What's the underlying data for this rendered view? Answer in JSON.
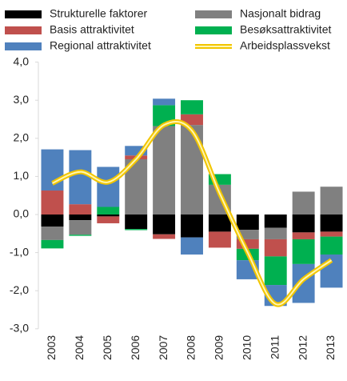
{
  "chart_data": {
    "type": "stacked-bar-line",
    "categories": [
      "2003",
      "2004",
      "2005",
      "2006",
      "2007",
      "2008",
      "2009",
      "2010",
      "2011",
      "2012",
      "2013"
    ],
    "series": [
      {
        "name": "Strukturelle faktorer",
        "color": "#000000",
        "values": [
          -0.32,
          -0.15,
          -0.05,
          -0.38,
          -0.52,
          -0.6,
          -0.45,
          -0.4,
          -0.35,
          -0.47,
          -0.45
        ]
      },
      {
        "name": "Nasjonalt bidrag",
        "color": "#808080",
        "values": [
          -0.35,
          -0.38,
          0,
          1.45,
          2.32,
          2.35,
          0.78,
          -0.25,
          -0.3,
          0.6,
          0.73
        ]
      },
      {
        "name": "Basis attraktivitet",
        "color": "#c0504d",
        "values": [
          0.63,
          0.27,
          -0.18,
          0.1,
          -0.12,
          0.28,
          -0.42,
          -0.25,
          -0.45,
          -0.18,
          -0.13
        ]
      },
      {
        "name": "Besøksattraktivitet",
        "color": "#00b050",
        "values": [
          -0.22,
          -0.03,
          0.2,
          -0.03,
          0.55,
          0.37,
          0.28,
          -0.3,
          -0.75,
          -0.65,
          -0.47
        ]
      },
      {
        "name": "Regional attraktivitet",
        "color": "#4f81bd",
        "values": [
          1.08,
          1.42,
          1.05,
          0.25,
          0.17,
          -0.45,
          0,
          -0.5,
          -0.55,
          -1.02,
          -0.87
        ]
      },
      {
        "name": "Arbeidsplassvekst",
        "color": "#f2c500",
        "type": "line",
        "values": [
          0.82,
          1.12,
          0.85,
          1.45,
          2.35,
          2.2,
          0.55,
          -1.0,
          -2.35,
          -1.7,
          -1.2
        ]
      }
    ],
    "ylim": [
      -3,
      4
    ],
    "yticks": [
      {
        "value": -3,
        "label": "-3,0"
      },
      {
        "value": -2,
        "label": "-2,0"
      },
      {
        "value": -1,
        "label": "-1,0"
      },
      {
        "value": 0,
        "label": "0,0"
      },
      {
        "value": 1,
        "label": "1,0"
      },
      {
        "value": 2,
        "label": "2,0"
      },
      {
        "value": 3,
        "label": "3,0"
      },
      {
        "value": 4,
        "label": "4,0"
      }
    ]
  }
}
